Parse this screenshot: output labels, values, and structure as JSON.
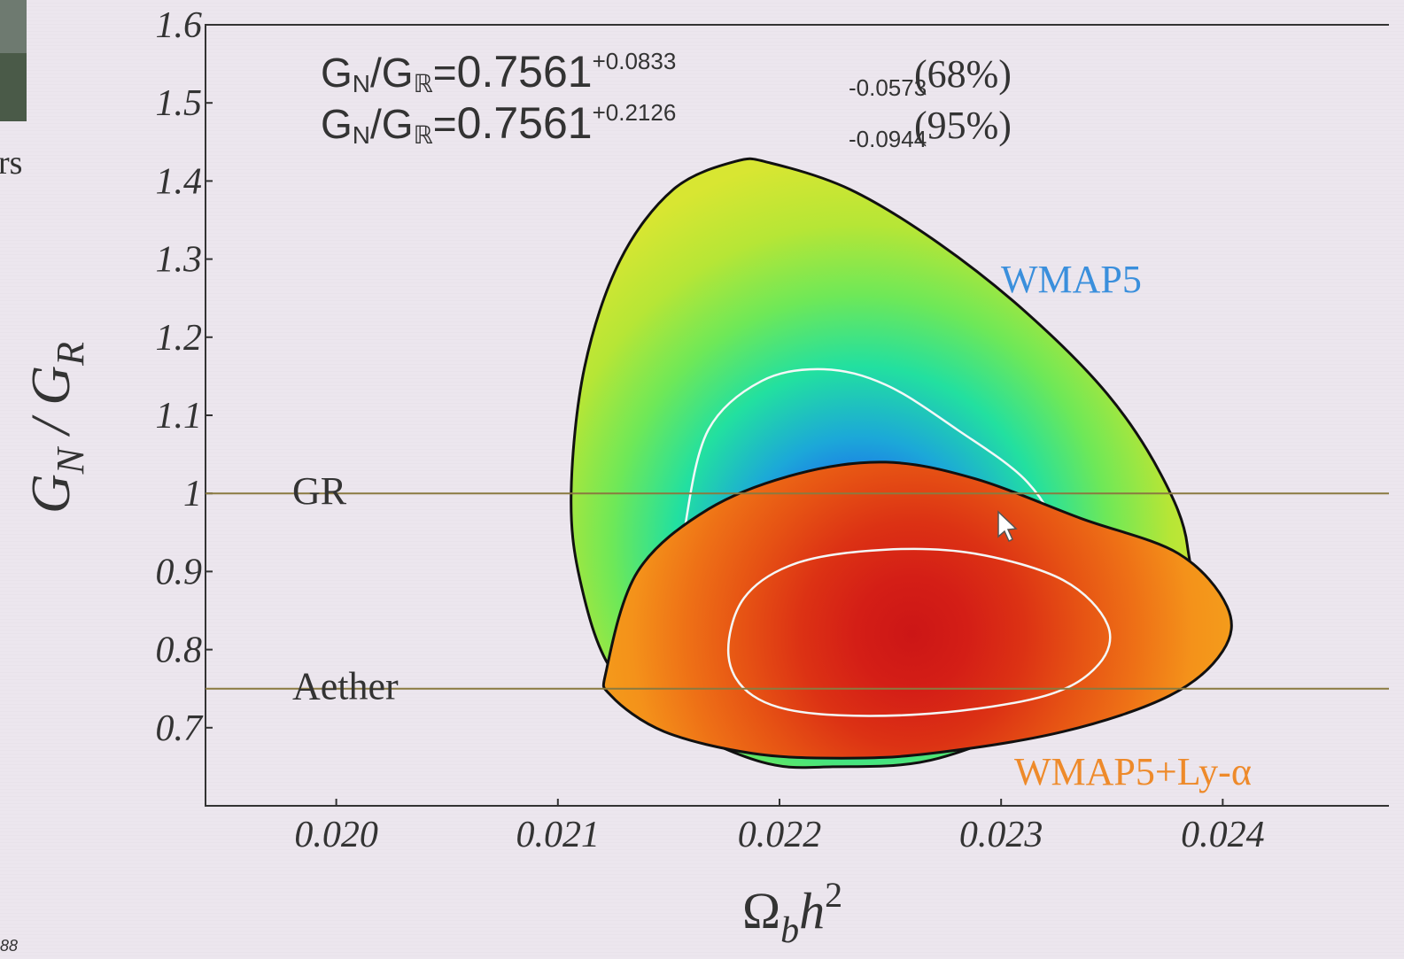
{
  "chart_data": {
    "type": "contour",
    "xlim": [
      0.01941,
      0.02475
    ],
    "ylim": [
      0.6,
      1.6
    ],
    "xticks": [
      {
        "value": 0.02,
        "label": "0.020"
      },
      0.021,
      0.022,
      0.023,
      0.024
    ],
    "yticks": [
      0.7,
      0.8,
      0.9,
      1,
      1.1,
      1.2,
      1.3,
      1.4,
      1.5,
      1.6
    ],
    "x_label": {
      "base": "Ω",
      "sub": "b",
      "var": "h",
      "sup": "2"
    },
    "y_label": {
      "num": "G",
      "num_sub": "N",
      "sep": " / ",
      "den": "G",
      "den_sub": "R"
    },
    "ratio": {
      "num": "G",
      "num_sub": "N",
      "sep": "/",
      "den": "G",
      "den_sub": "ℝ",
      "relation": "="
    },
    "annotations": [
      {
        "estimate": "0.7561",
        "upper": "+0.0833",
        "lower": "-0.0573",
        "level": "(68%)"
      },
      {
        "estimate": "0.7561",
        "upper": "+0.2126",
        "lower": "-0.0944",
        "level": "(95%)"
      }
    ],
    "series": [
      {
        "name": "WMAP5",
        "color": "#3a8fdc",
        "outline": "#111111",
        "inner_line": "#f4f8f8",
        "colors": [
          "#0a10d8",
          "#1a5ef0",
          "#1ca8d8",
          "#22e0a0",
          "#6ee858",
          "#b6e636",
          "#d8e632"
        ],
        "contours": [
          {
            "x": [
              0.02106,
              0.02112,
              0.02128,
              0.02152,
              0.0218,
              0.02196,
              0.02232,
              0.02272,
              0.02312,
              0.02348,
              0.02372,
              0.02384,
              0.0238,
              0.02328,
              0.02272,
              0.02224,
              0.02192,
              0.02152,
              0.02124,
              0.0211
            ],
            "y": [
              1.002,
              1.161,
              1.298,
              1.389,
              1.425,
              1.423,
              1.389,
              1.32,
              1.23,
              1.127,
              1.025,
              0.934,
              0.843,
              0.73,
              0.661,
              0.65,
              0.656,
              0.707,
              0.775,
              0.889
            ]
          },
          {
            "x": [
              0.02158,
              0.02168,
              0.02192,
              0.0222,
              0.02248,
              0.0228,
              0.02312,
              0.02328,
              0.02332,
              0.02296,
              0.02248,
              0.022,
              0.02168,
              0.02158
            ],
            "y": [
              0.968,
              1.082,
              1.144,
              1.159,
              1.139,
              1.082,
              1.014,
              0.934,
              0.843,
              0.775,
              0.752,
              0.775,
              0.843,
              0.911
            ]
          }
        ]
      },
      {
        "name": "WMAP5+Ly-α",
        "color": "#ee8a2a",
        "outline": "#111111",
        "inner_line": "#f4f8f8",
        "colors": [
          "#cc1616",
          "#d41e16",
          "#dc3214",
          "#e65214",
          "#ee7016",
          "#f4921a",
          "#f4a01c"
        ],
        "contours": [
          {
            "x": [
              0.02122,
              0.02136,
              0.02168,
              0.02208,
              0.02248,
              0.02288,
              0.02336,
              0.0238,
              0.02402,
              0.024,
              0.02376,
              0.02328,
              0.02268,
              0.02228,
              0.02188,
              0.02148,
              0.02124
            ],
            "y": [
              0.775,
              0.9,
              0.98,
              1.025,
              1.04,
              1.019,
              0.968,
              0.923,
              0.855,
              0.798,
              0.741,
              0.695,
              0.667,
              0.661,
              0.667,
              0.695,
              0.741
            ]
          },
          {
            "x": [
              0.02177,
              0.02184,
              0.02208,
              0.02248,
              0.02288,
              0.02328,
              0.02348,
              0.02344,
              0.0232,
              0.02268,
              0.02216,
              0.02188
            ],
            "y": [
              0.792,
              0.866,
              0.911,
              0.928,
              0.923,
              0.889,
              0.832,
              0.781,
              0.741,
              0.718,
              0.718,
              0.741
            ]
          }
        ]
      }
    ],
    "hlines": [
      {
        "label": "GR",
        "value": 1
      },
      {
        "label": "Aether",
        "value": 0.75
      }
    ],
    "hline_color": "#8a7a40",
    "side_text": [
      "rs",
      "88"
    ]
  }
}
